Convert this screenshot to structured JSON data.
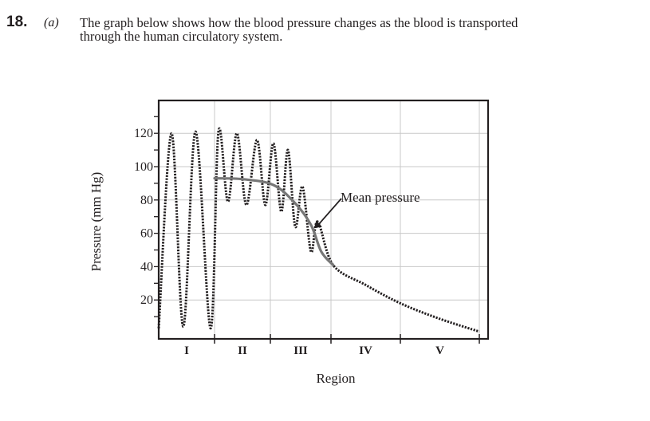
{
  "question": {
    "number": "18.",
    "part": "(a)",
    "text_line1": "The graph below shows how the blood pressure changes as the blood is transported",
    "text_line2": "through the human circulatory system."
  },
  "chart_data": {
    "type": "line",
    "title": "",
    "xlabel": "Region",
    "ylabel": "Pressure (mm Hg)",
    "x_categories": [
      "I",
      "II",
      "III",
      "IV",
      "V"
    ],
    "x_units_note_visible": false,
    "ylim": [
      -3,
      140
    ],
    "y_ticks_major": [
      20,
      40,
      60,
      80,
      100,
      120
    ],
    "y_ticks_minor_step": 10,
    "grid": true,
    "series": [
      {
        "style": "dotted-black",
        "points": [
          [
            0.0,
            3
          ],
          [
            0.23,
            120
          ],
          [
            0.44,
            4
          ],
          [
            0.66,
            121
          ],
          [
            0.93,
            3
          ],
          [
            1.07,
            121
          ],
          [
            1.24,
            79
          ],
          [
            1.4,
            120
          ],
          [
            1.57,
            77
          ],
          [
            1.76,
            116
          ],
          [
            1.91,
            77
          ],
          [
            2.05,
            114
          ],
          [
            2.18,
            73
          ],
          [
            2.29,
            110
          ],
          [
            2.41,
            64
          ],
          [
            2.53,
            88
          ],
          [
            2.67,
            49
          ],
          [
            2.78,
            67
          ],
          [
            3.03,
            41
          ],
          [
            3.5,
            29
          ],
          [
            4.0,
            18
          ],
          [
            4.48,
            9
          ],
          [
            5.0,
            1
          ]
        ]
      },
      {
        "name": "Mean pressure",
        "style": "solid-gray",
        "points": [
          [
            1.0,
            93
          ],
          [
            1.5,
            92.5
          ],
          [
            2.05,
            89
          ],
          [
            2.41,
            78
          ],
          [
            2.67,
            65
          ],
          [
            2.84,
            49
          ],
          [
            3.03,
            41
          ]
        ]
      }
    ],
    "annotations": [
      {
        "text": "Mean pressure",
        "points_to": [
          2.72,
          63
        ]
      }
    ],
    "colors": {
      "line": "#231f20",
      "mean": "#777777",
      "grid": "#c8c8c8"
    }
  }
}
